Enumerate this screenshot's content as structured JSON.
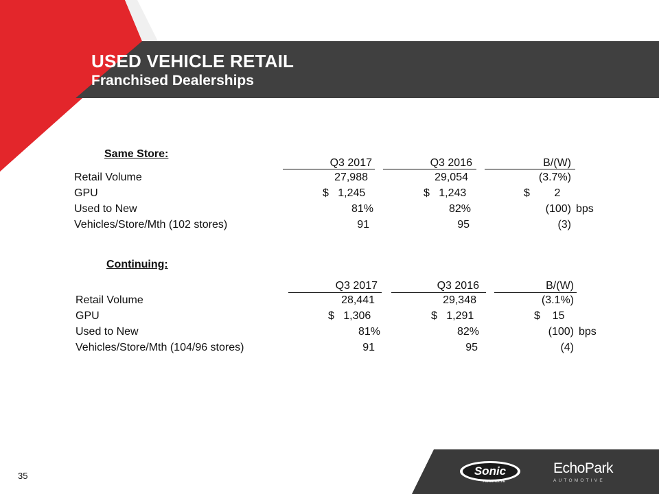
{
  "slide": {
    "title": "USED VEHICLE RETAIL",
    "subtitle": "Franchised Dealerships",
    "page_number": "35"
  },
  "colors": {
    "header": "#404040",
    "accent_red": "#e3262b",
    "footer": "#3a3a3a"
  },
  "same_store": {
    "heading": "Same Store:",
    "columns": [
      "Q3 2017",
      "Q3 2016",
      "B/(W)"
    ],
    "rows": [
      {
        "label": "Retail Volume",
        "q3_2017": "27,988",
        "q3_2016": "29,054",
        "bw": "(3.7%)",
        "unit": ""
      },
      {
        "label": "GPU",
        "q3_2017": "$   1,245",
        "q3_2016": "$   1,243",
        "bw": "$        2",
        "unit": ""
      },
      {
        "label": "Used to New",
        "q3_2017": "81%",
        "q3_2016": "82%",
        "bw": "(100)",
        "unit": "bps"
      },
      {
        "label": "Vehicles/Store/Mth (102 stores)",
        "q3_2017": "91",
        "q3_2016": "95",
        "bw": "(3)",
        "unit": ""
      }
    ]
  },
  "continuing": {
    "heading": "Continuing:",
    "columns": [
      "Q3 2017",
      "Q3 2016",
      "B/(W)"
    ],
    "rows": [
      {
        "label": "Retail Volume",
        "q3_2017": "28,441",
        "q3_2016": "29,348",
        "bw": "(3.1%)",
        "unit": ""
      },
      {
        "label": "GPU",
        "q3_2017": "$   1,306",
        "q3_2016": "$   1,291",
        "bw": "$    15",
        "unit": ""
      },
      {
        "label": "Used to New",
        "q3_2017": "81%",
        "q3_2016": "82%",
        "bw": "(100)",
        "unit": "bps"
      },
      {
        "label": "Vehicles/Store/Mth (104/96 stores)",
        "q3_2017": "91",
        "q3_2016": "95",
        "bw": "(4)",
        "unit": ""
      }
    ]
  },
  "logos": {
    "sonic_main": "Sonic",
    "sonic_sub": "Automotive",
    "echopark_main": "EchoPark",
    "echopark_sub": "AUTOMOTIVE"
  }
}
